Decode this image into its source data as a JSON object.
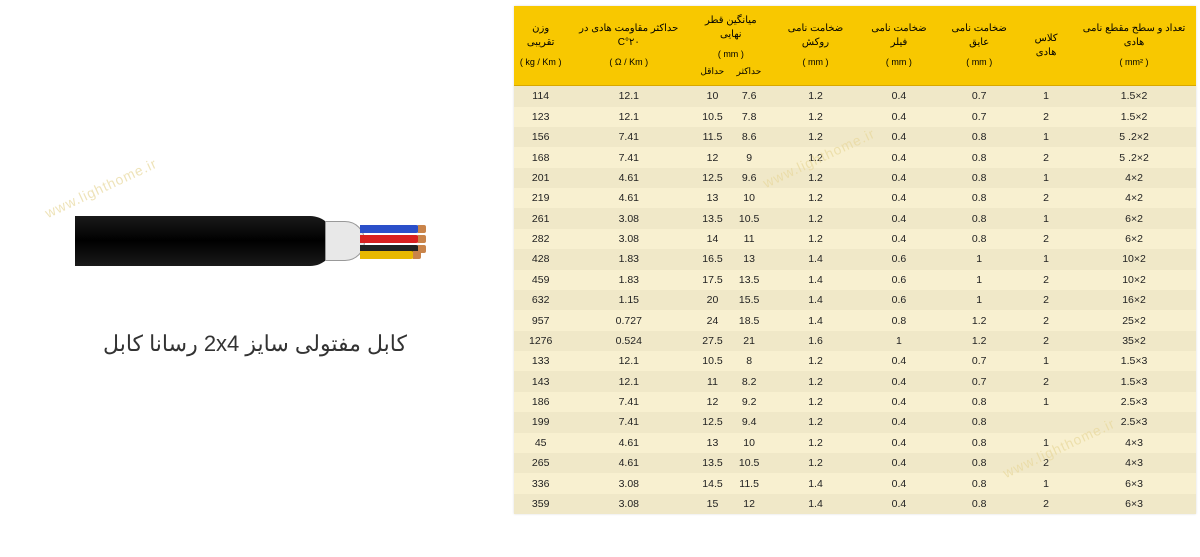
{
  "caption": "کابل مفتولی سایز 2x4 رسانا کابل",
  "watermark": "www.lighthome.ir",
  "table": {
    "header_bg": "#f8c800",
    "row_odd_bg": "#f0e8c8",
    "row_even_bg": "#f8f0d0",
    "columns": [
      {
        "title": "تعداد و سطح مقطع نامی هادی",
        "unit": "( mm² )"
      },
      {
        "title": "کلاس هادی",
        "unit": ""
      },
      {
        "title": "ضخامت نامی عایق",
        "unit": "( mm )"
      },
      {
        "title": "ضخامت نامی فیلر",
        "unit": "( mm )"
      },
      {
        "title": "ضخامت نامی روکش",
        "unit": "( mm )"
      },
      {
        "title": "میانگین قطر نهایی",
        "unit": "( mm )",
        "sub": [
          "حداکثر",
          "حداقل"
        ]
      },
      {
        "title": "حداکثر مقاومت هادی در ۲۰°C",
        "unit": "( Ω / Km )"
      },
      {
        "title": "وزن تقریبی",
        "unit": "( kg / Km )"
      }
    ],
    "rows": [
      [
        "2×1.5",
        "1",
        "0.7",
        "0.4",
        "1.2",
        "7.6",
        "10",
        "12.1",
        "114"
      ],
      [
        "2×1.5",
        "2",
        "0.7",
        "0.4",
        "1.2",
        "7.8",
        "10.5",
        "12.1",
        "123"
      ],
      [
        "2×2. 5",
        "1",
        "0.8",
        "0.4",
        "1.2",
        "8.6",
        "11.5",
        "7.41",
        "156"
      ],
      [
        "2×2. 5",
        "2",
        "0.8",
        "0.4",
        "1.2",
        "9",
        "12",
        "7.41",
        "168"
      ],
      [
        "2×4",
        "1",
        "0.8",
        "0.4",
        "1.2",
        "9.6",
        "12.5",
        "4.61",
        "201"
      ],
      [
        "2×4",
        "2",
        "0.8",
        "0.4",
        "1.2",
        "10",
        "13",
        "4.61",
        "219"
      ],
      [
        "2×6",
        "1",
        "0.8",
        "0.4",
        "1.2",
        "10.5",
        "13.5",
        "3.08",
        "261"
      ],
      [
        "2×6",
        "2",
        "0.8",
        "0.4",
        "1.2",
        "11",
        "14",
        "3.08",
        "282"
      ],
      [
        "2×10",
        "1",
        "1",
        "0.6",
        "1.4",
        "13",
        "16.5",
        "1.83",
        "428"
      ],
      [
        "2×10",
        "2",
        "1",
        "0.6",
        "1.4",
        "13.5",
        "17.5",
        "1.83",
        "459"
      ],
      [
        "2×16",
        "2",
        "1",
        "0.6",
        "1.4",
        "15.5",
        "20",
        "1.15",
        "632"
      ],
      [
        "2×25",
        "2",
        "1.2",
        "0.8",
        "1.4",
        "18.5",
        "24",
        "0.727",
        "957"
      ],
      [
        "2×35",
        "2",
        "1.2",
        "1",
        "1.6",
        "21",
        "27.5",
        "0.524",
        "1276"
      ],
      [
        "3×1.5",
        "1",
        "0.7",
        "0.4",
        "1.2",
        "8",
        "10.5",
        "12.1",
        "133"
      ],
      [
        "3×1.5",
        "2",
        "0.7",
        "0.4",
        "1.2",
        "8.2",
        "11",
        "12.1",
        "143"
      ],
      [
        "3×2.5",
        "1",
        "0.8",
        "0.4",
        "1.2",
        "9.2",
        "12",
        "7.41",
        "186"
      ],
      [
        "3×2.5",
        "",
        "0.8",
        "0.4",
        "1.2",
        "9.4",
        "12.5",
        "7.41",
        "199"
      ],
      [
        "3×4",
        "1",
        "0.8",
        "0.4",
        "1.2",
        "10",
        "13",
        "4.61",
        "45"
      ],
      [
        "3×4",
        "2",
        "0.8",
        "0.4",
        "1.2",
        "10.5",
        "13.5",
        "4.61",
        "265"
      ],
      [
        "3×6",
        "1",
        "0.8",
        "0.4",
        "1.4",
        "11.5",
        "14.5",
        "3.08",
        "336"
      ],
      [
        "3×6",
        "2",
        "0.8",
        "0.4",
        "1.4",
        "12",
        "15",
        "3.08",
        "359"
      ]
    ]
  }
}
